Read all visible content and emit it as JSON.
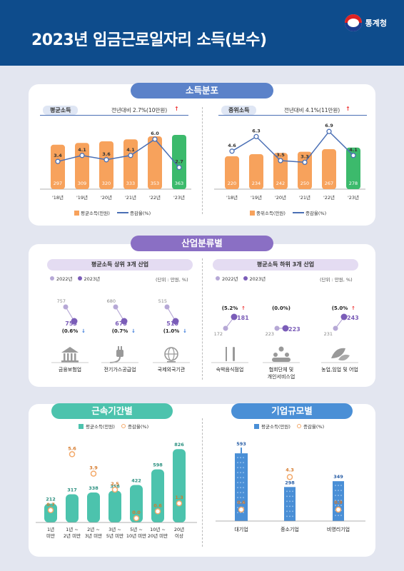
{
  "header": {
    "title": "2023년 임금근로일자리 소득(보수)",
    "org": "통계청"
  },
  "income": {
    "section_title": "소득분포",
    "mean": {
      "label": "평균소득",
      "sub": "전년대비 2.7%(10만원)",
      "arrow": "↑"
    },
    "median": {
      "label": "중위소득",
      "sub": "전년대비 4.1%(11만원)",
      "arrow": "↑"
    },
    "legend_mean": "평균소득(만원)",
    "legend_median": "중위소득(만원)",
    "legend_rate": "증감율(%)"
  },
  "industry": {
    "section_title": "산업분류별",
    "top_title": "평균소득 상위 3개 산업",
    "bottom_title": "평균소득 하위 3개 산업",
    "legend_2022": "2022년",
    "legend_2023": "2023년",
    "unit": "(단위 : 만원, %)"
  },
  "tenure": {
    "section_title": "근속기간별",
    "legend_income": "평균소득(만원)",
    "legend_rate": "증감율(%)"
  },
  "size": {
    "section_title": "기업규모별",
    "legend_income": "평균소득(만원)",
    "legend_rate": "증감율(%)"
  },
  "colors": {
    "orange": "#f7a25c",
    "green": "#3cba6c",
    "line": "#4a6fb5",
    "purple": "#7b5db8",
    "purple_light": "#b6a8d6",
    "teal": "#4cc3ad",
    "blue": "#4a8fd6",
    "ring": "#f3a96a"
  },
  "chart_data": [
    {
      "type": "bar",
      "title": "평균소득",
      "categories": [
        "'18년",
        "'19년",
        "'20년",
        "'21년",
        "'22년",
        "'23년"
      ],
      "series": [
        {
          "name": "평균소득(만원)",
          "values": [
            297,
            309,
            320,
            333,
            353,
            363
          ]
        },
        {
          "name": "증감율(%)",
          "type": "line",
          "values": [
            3.4,
            4.1,
            3.6,
            4.1,
            6.0,
            2.7
          ]
        }
      ]
    },
    {
      "type": "bar",
      "title": "중위소득",
      "categories": [
        "'18년",
        "'19년",
        "'20년",
        "'21년",
        "'22년",
        "'23년"
      ],
      "series": [
        {
          "name": "중위소득(만원)",
          "values": [
            220,
            234,
            242,
            250,
            267,
            278
          ]
        },
        {
          "name": "증감율(%)",
          "type": "line",
          "values": [
            4.6,
            6.3,
            3.5,
            3.3,
            6.9,
            4.1
          ]
        }
      ]
    },
    {
      "type": "scatter",
      "title": "평균소득 상위 3개 산업",
      "categories": [
        "금융보험업",
        "전기가스공급업",
        "국제외국기관"
      ],
      "series": [
        {
          "name": "2022년",
          "values": [
            757,
            680,
            515
          ]
        },
        {
          "name": "2023년",
          "values": [
            753,
            675,
            510
          ]
        }
      ],
      "rates": [
        "(0.6%",
        "(0.7%",
        "(1.0%"
      ],
      "arrow": "↓"
    },
    {
      "type": "scatter",
      "title": "평균소득 하위 3개 산업",
      "categories": [
        "숙박음식점업",
        "협회단체 및 개인서비스업",
        "농업,임업 및 어업"
      ],
      "series": [
        {
          "name": "2022년",
          "values": [
            172,
            223,
            231
          ]
        },
        {
          "name": "2023년",
          "values": [
            181,
            223,
            243
          ]
        }
      ],
      "rates": [
        "(5.2%",
        "(0.0%)",
        "(5.0%"
      ],
      "arrow": "↑"
    },
    {
      "type": "bar",
      "title": "근속기간별",
      "categories": [
        "1년 미만",
        "1년 ~ 2년 미만",
        "2년 ~ 3년 미만",
        "3년 ~ 5년 미만",
        "5년 ~ 10년 미만",
        "10년 ~ 20년 미만",
        "20년 이상"
      ],
      "series": [
        {
          "name": "평균소득(만원)",
          "values": [
            212,
            317,
            338,
            358,
            422,
            598,
            826
          ]
        },
        {
          "name": "증감율(%)",
          "values": [
            0.7,
            5.6,
            3.9,
            2.5,
            0.0,
            0.6,
            1.3
          ]
        }
      ]
    },
    {
      "type": "bar",
      "title": "기업규모별",
      "categories": [
        "대기업",
        "중소기업",
        "비영리기업"
      ],
      "series": [
        {
          "name": "평균소득(만원)",
          "values": [
            593,
            298,
            349
          ]
        },
        {
          "name": "증감율(%)",
          "values": [
            0.6,
            4.3,
            0.9
          ]
        }
      ]
    }
  ]
}
